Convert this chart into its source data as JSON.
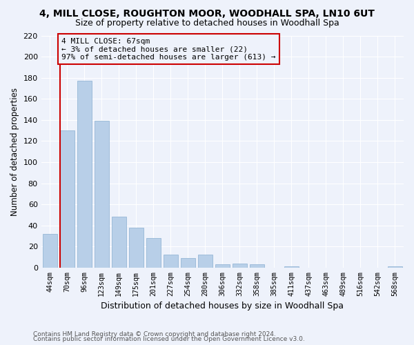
{
  "title": "4, MILL CLOSE, ROUGHTON MOOR, WOODHALL SPA, LN10 6UT",
  "subtitle": "Size of property relative to detached houses in Woodhall Spa",
  "xlabel": "Distribution of detached houses by size in Woodhall Spa",
  "ylabel": "Number of detached properties",
  "bar_labels": [
    "44sqm",
    "70sqm",
    "96sqm",
    "123sqm",
    "149sqm",
    "175sqm",
    "201sqm",
    "227sqm",
    "254sqm",
    "280sqm",
    "306sqm",
    "332sqm",
    "358sqm",
    "385sqm",
    "411sqm",
    "437sqm",
    "463sqm",
    "489sqm",
    "516sqm",
    "542sqm",
    "568sqm"
  ],
  "bar_values": [
    32,
    130,
    177,
    139,
    48,
    38,
    28,
    12,
    9,
    12,
    3,
    4,
    3,
    0,
    1,
    0,
    0,
    0,
    0,
    0,
    1
  ],
  "bar_color": "#b8cfe8",
  "bar_edge_color": "#8aaed0",
  "highlight_color": "#cc0000",
  "annotation_text_line1": "4 MILL CLOSE: 67sqm",
  "annotation_text_line2": "← 3% of detached houses are smaller (22)",
  "annotation_text_line3": "97% of semi-detached houses are larger (613) →",
  "annotation_box_color": "#cc0000",
  "ylim": [
    0,
    220
  ],
  "yticks": [
    0,
    20,
    40,
    60,
    80,
    100,
    120,
    140,
    160,
    180,
    200,
    220
  ],
  "footer_line1": "Contains HM Land Registry data © Crown copyright and database right 2024.",
  "footer_line2": "Contains public sector information licensed under the Open Government Licence v3.0.",
  "background_color": "#eef2fb",
  "grid_color": "#ffffff",
  "red_line_x": 0.575
}
